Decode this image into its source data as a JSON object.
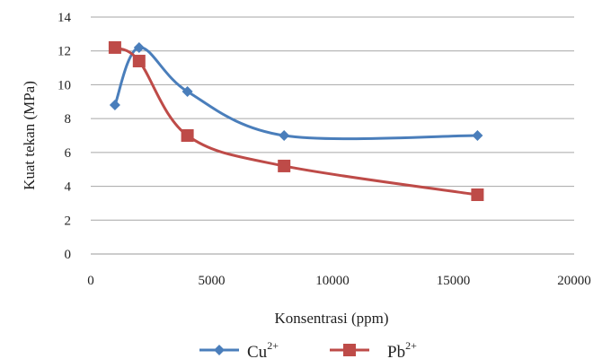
{
  "chart_data": {
    "type": "line",
    "xlabel": "Konsentrasi (ppm)",
    "ylabel": "Kuat tekan (MPa)",
    "xlim": [
      0,
      20000
    ],
    "ylim": [
      0,
      14
    ],
    "x_ticks": [
      "0",
      "5000",
      "10000",
      "15000",
      "20000"
    ],
    "y_ticks": [
      "0",
      "2",
      "4",
      "6",
      "8",
      "10",
      "12",
      "14"
    ],
    "x_tick_values": [
      0,
      5000,
      10000,
      15000,
      20000
    ],
    "y_tick_values": [
      0,
      2,
      4,
      6,
      8,
      10,
      12,
      14
    ],
    "grid": "horizontal",
    "legend_position": "bottom",
    "smooth": true,
    "series": [
      {
        "name": "Cu",
        "name_sup": "2+",
        "color": "#4a7ebb",
        "marker": "diamond",
        "x": [
          1000,
          2000,
          4000,
          8000,
          16000
        ],
        "y": [
          8.8,
          12.2,
          9.6,
          7.0,
          7.0
        ]
      },
      {
        "name": "Pb",
        "name_sup": "2+",
        "color": "#be4b48",
        "marker": "square",
        "x": [
          1000,
          2000,
          4000,
          8000,
          16000
        ],
        "y": [
          12.2,
          11.4,
          7.0,
          5.2,
          3.5
        ]
      }
    ]
  }
}
